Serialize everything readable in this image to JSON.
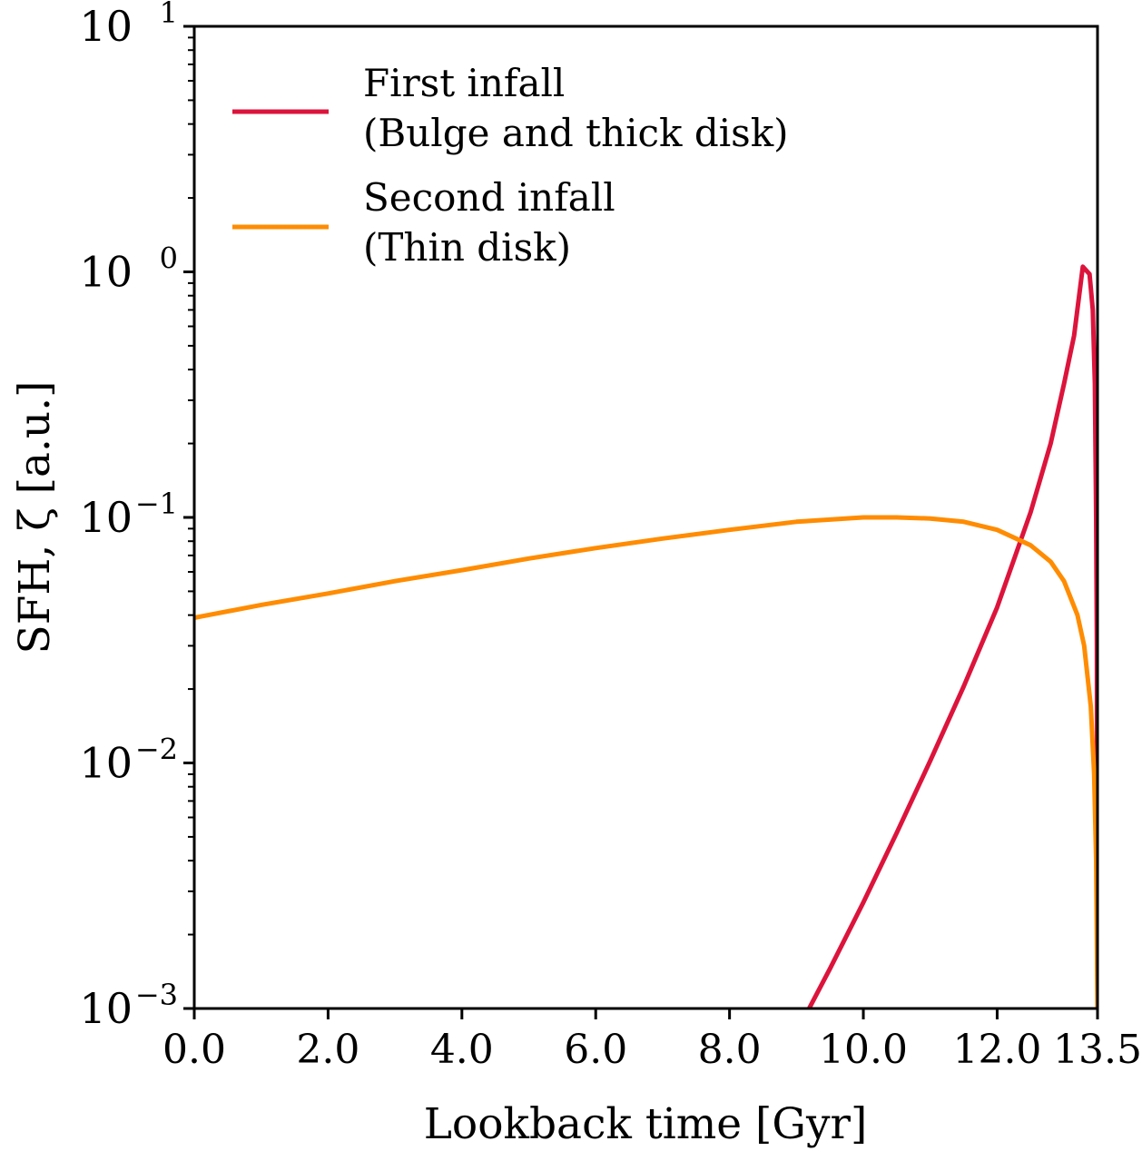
{
  "chart_data": {
    "type": "line",
    "title": "",
    "xlabel": "Lookback time [Gyr]",
    "ylabel": "SFH, ζ [a.u.]",
    "xlim": [
      0.0,
      13.5
    ],
    "ylim": [
      0.001,
      10
    ],
    "yscale": "log",
    "grid": false,
    "legend_position": "top-left",
    "xticks": [
      {
        "value": 0.0,
        "label": "0.0"
      },
      {
        "value": 2.0,
        "label": "2.0"
      },
      {
        "value": 4.0,
        "label": "4.0"
      },
      {
        "value": 6.0,
        "label": "6.0"
      },
      {
        "value": 8.0,
        "label": "8.0"
      },
      {
        "value": 10.0,
        "label": "10.0"
      },
      {
        "value": 12.0,
        "label": "12.0"
      },
      {
        "value": 13.5,
        "label": "13.5"
      }
    ],
    "yticks": [
      {
        "value": 10,
        "base": "10",
        "exp": "1"
      },
      {
        "value": 1,
        "base": "10",
        "exp": "0"
      },
      {
        "value": 0.1,
        "base": "10",
        "exp": "−1"
      },
      {
        "value": 0.01,
        "base": "10",
        "exp": "−2"
      },
      {
        "value": 0.001,
        "base": "10",
        "exp": "−3"
      }
    ],
    "series": [
      {
        "name": "First infall (Bulge and thick disk)",
        "legend_lines": [
          "First infall",
          "(Bulge and thick disk)"
        ],
        "color": "#dc143c",
        "x": [
          9.19,
          9.5,
          10.0,
          10.5,
          11.0,
          11.5,
          12.0,
          12.5,
          12.8,
          13.0,
          13.15,
          13.28,
          13.38,
          13.43,
          13.46,
          13.48,
          13.49,
          13.5
        ],
        "y": [
          0.001,
          0.00145,
          0.0027,
          0.0052,
          0.0102,
          0.0205,
          0.043,
          0.105,
          0.2,
          0.35,
          0.55,
          1.05,
          0.98,
          0.7,
          0.35,
          0.1,
          0.03,
          0.001
        ]
      },
      {
        "name": "Second infall (Thin disk)",
        "legend_lines": [
          "Second infall",
          "(Thin disk)"
        ],
        "color": "#ff8c00",
        "x": [
          0.0,
          1.0,
          2.0,
          3.0,
          4.0,
          5.0,
          6.0,
          7.0,
          8.0,
          9.0,
          10.0,
          10.5,
          11.0,
          11.5,
          12.0,
          12.5,
          12.8,
          13.0,
          13.2,
          13.3,
          13.4,
          13.45,
          13.48,
          13.5
        ],
        "y": [
          0.039,
          0.044,
          0.049,
          0.055,
          0.061,
          0.068,
          0.075,
          0.082,
          0.089,
          0.096,
          0.1,
          0.1,
          0.099,
          0.096,
          0.089,
          0.077,
          0.066,
          0.055,
          0.04,
          0.03,
          0.017,
          0.009,
          0.004,
          0.001
        ]
      }
    ]
  }
}
